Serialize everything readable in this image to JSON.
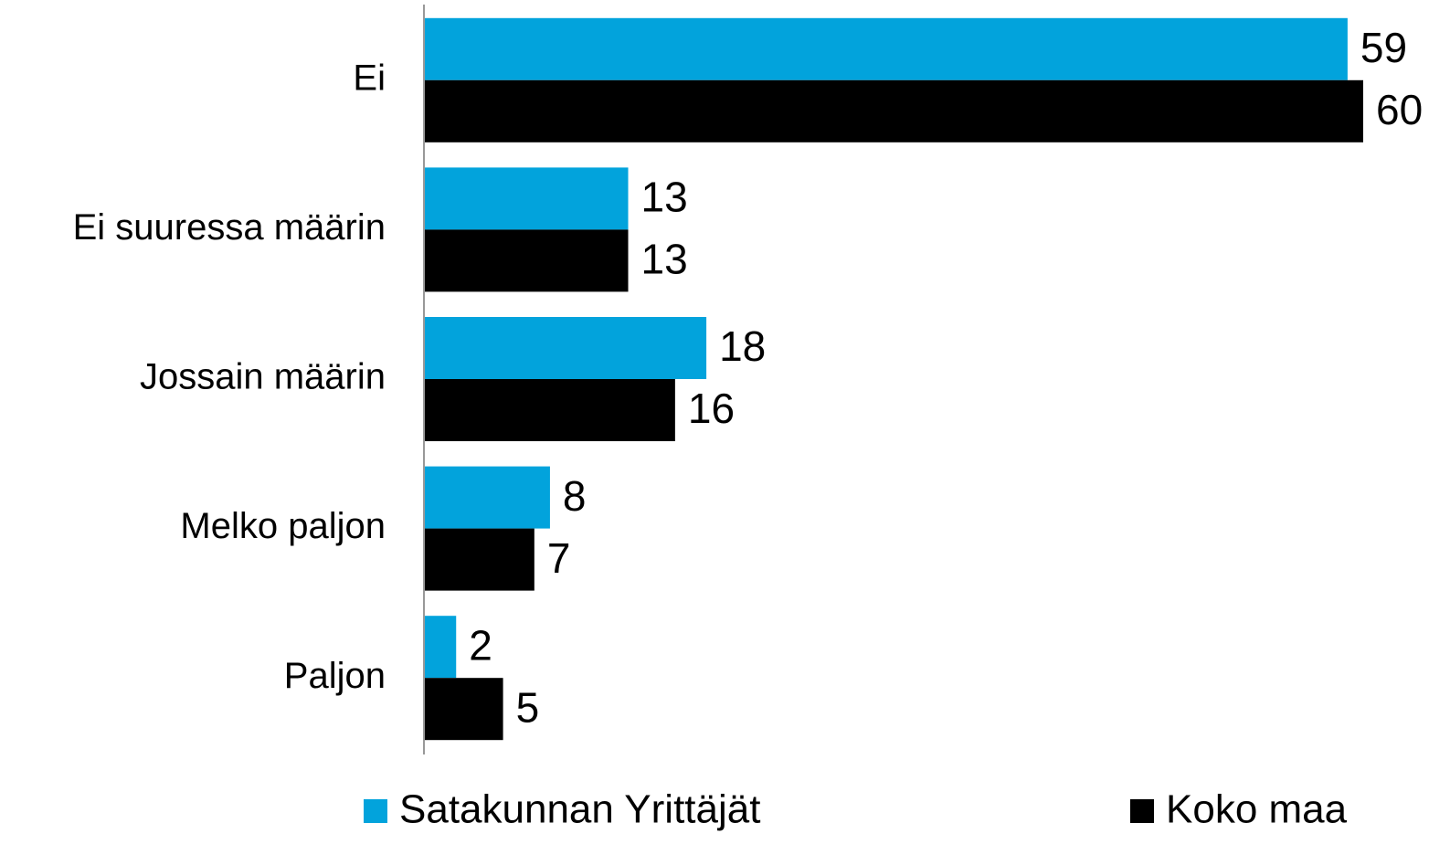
{
  "chart_data": {
    "type": "bar",
    "orientation": "horizontal",
    "categories": [
      "Ei",
      "Ei suuressa määrin",
      "Jossain määrin",
      "Melko paljon",
      "Paljon"
    ],
    "series": [
      {
        "name": "Satakunnan Yrittäjät",
        "color": "#02a3dc",
        "values": [
          59,
          13,
          18,
          8,
          2
        ]
      },
      {
        "name": "Koko maa",
        "color": "#000000",
        "values": [
          60,
          13,
          16,
          7,
          5
        ]
      }
    ],
    "legend": "bottom"
  }
}
